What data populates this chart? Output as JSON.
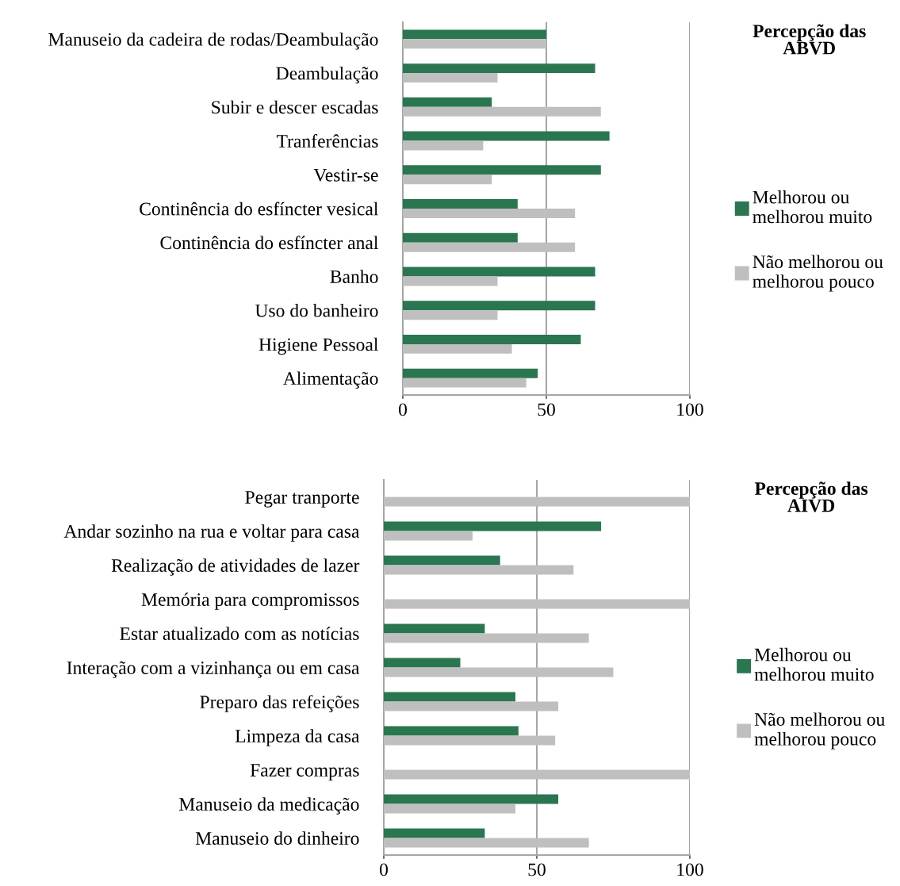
{
  "chart_data": [
    {
      "type": "bar",
      "orientation": "horizontal",
      "legend_title": "Percepção das ABVD",
      "categories": [
        "Manuseio da cadeira de rodas/Deambulação",
        "Deambulação",
        "Subir e descer escadas",
        "Tranferências",
        "Vestir-se",
        "Continência do esfíncter vesical",
        "Continência do esfíncter anal",
        "Banho",
        "Uso do banheiro",
        "Higiene Pessoal",
        "Alimentação"
      ],
      "series": [
        {
          "name": "Melhorou ou melhorou muito",
          "color": "#2a7650",
          "values": [
            50,
            67,
            31,
            72,
            69,
            40,
            40,
            67,
            67,
            62,
            47
          ]
        },
        {
          "name": "Não melhorou ou melhorou pouco",
          "color": "#bfbfbf",
          "values": [
            50,
            33,
            69,
            28,
            31,
            60,
            60,
            33,
            33,
            38,
            43
          ]
        }
      ],
      "xlim": [
        0,
        100
      ],
      "xticks": [
        0,
        50,
        100
      ],
      "grid": "x",
      "legend": "right"
    },
    {
      "type": "bar",
      "orientation": "horizontal",
      "legend_title": "Percepção das AIVD",
      "categories": [
        "Pegar tranporte",
        "Andar sozinho na rua e voltar para casa",
        "Realização de atividades de lazer",
        "Memória para compromissos",
        "Estar atualizado com as notícias",
        "Interação com a vizinhança ou em casa",
        "Preparo das refeições",
        "Limpeza da casa",
        "Fazer compras",
        "Manuseio da medicação",
        "Manuseio do dinheiro"
      ],
      "series": [
        {
          "name": "Melhorou ou melhorou muito",
          "color": "#2a7650",
          "values": [
            0,
            71,
            38,
            0,
            33,
            25,
            43,
            44,
            0,
            57,
            33
          ]
        },
        {
          "name": "Não melhorou ou melhorou pouco",
          "color": "#bfbfbf",
          "values": [
            100,
            29,
            62,
            100,
            67,
            75,
            57,
            56,
            100,
            43,
            67
          ]
        }
      ],
      "xlim": [
        0,
        100
      ],
      "xticks": [
        0,
        50,
        100
      ],
      "grid": "x",
      "legend": "right"
    }
  ]
}
